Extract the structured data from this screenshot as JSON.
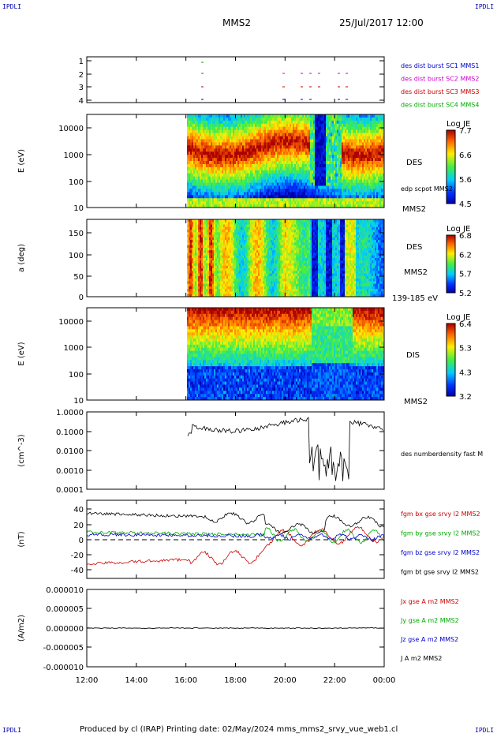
{
  "corners": {
    "left_top": "IPDLI",
    "right_top": "IPDLI",
    "left_bottom": "IPDLI",
    "right_bottom": "IPDLI"
  },
  "header": {
    "spacecraft": "MMS2",
    "date": "25/Jul/2017 12:00"
  },
  "footer": {
    "text": "Produced by cl (IRAP)   Printing date: 02/May/2024   mms_mms2_srvy_vue_web1.cl"
  },
  "colors": {
    "red": "#cc0000",
    "green": "#00aa00",
    "blue": "#0000cc",
    "magenta": "#cc00cc",
    "black": "#000000"
  },
  "chart_data": [
    {
      "type": "scatter",
      "id": "burst",
      "yticks": [
        "1",
        "2",
        "3",
        "4"
      ],
      "labels": [
        {
          "text": "des dist burst SC1 MMS1",
          "color": "#0000cc"
        },
        {
          "text": "des dist burst SC2 MMS2",
          "color": "#cc00cc"
        },
        {
          "text": "des dist burst SC3 MMS3",
          "color": "#cc0000"
        },
        {
          "text": "des dist burst SC4 MMS4",
          "color": "#00aa00"
        }
      ]
    },
    {
      "type": "heatmap",
      "id": "des_energy",
      "ylabel": "E (eV)",
      "yticks": [
        "10000",
        "1000",
        "100",
        "10"
      ],
      "right_labels": [
        "DES",
        "edp scpot MMS2",
        "MMS2"
      ],
      "colorbar": {
        "title": "Log JE",
        "ticks": [
          "7.7",
          "6.6",
          "5.6",
          "4.5"
        ]
      }
    },
    {
      "type": "heatmap",
      "id": "des_pitch",
      "ylabel": "a (deg)",
      "yticks": [
        "150",
        "100",
        "50",
        "0"
      ],
      "right_labels": [
        "DES",
        "MMS2",
        "139-185 eV"
      ],
      "colorbar": {
        "title": "Log JE",
        "ticks": [
          "6.8",
          "6.2",
          "5.7",
          "5.2"
        ]
      }
    },
    {
      "type": "heatmap",
      "id": "dis_energy",
      "ylabel": "E (eV)",
      "yticks": [
        "10000",
        "1000",
        "100",
        "10"
      ],
      "right_labels": [
        "DIS",
        "MMS2"
      ],
      "colorbar": {
        "title": "Log JE",
        "ticks": [
          "6.4",
          "5.3",
          "4.3",
          "3.2"
        ]
      }
    },
    {
      "type": "line",
      "id": "density",
      "ylabel": "(cm^-3)",
      "yticks": [
        "1.0000",
        "0.1000",
        "0.0100",
        "0.0010",
        "0.0001"
      ],
      "series": [
        {
          "name": "des numberdensity fast M",
          "color": "#000000"
        }
      ]
    },
    {
      "type": "line",
      "id": "fgm",
      "ylabel": "(nT)",
      "yticks": [
        "40",
        "20",
        "0",
        "-20",
        "-40"
      ],
      "series": [
        {
          "name": "fgm bx gse srvy l2 MMS2",
          "color": "#cc0000"
        },
        {
          "name": "fgm by gse srvy l2 MMS2",
          "color": "#00aa00"
        },
        {
          "name": "fgm bz gse srvy l2 MMS2",
          "color": "#0000cc"
        },
        {
          "name": "fgm bt gse srvy l2 MMS2",
          "color": "#000000"
        }
      ]
    },
    {
      "type": "line",
      "id": "current",
      "ylabel": "(A/m2)",
      "yticks": [
        "0.000010",
        "0.000005",
        "0.000000",
        "-0.000005",
        "-0.000010"
      ],
      "series": [
        {
          "name": "Jx gse A m2 MMS2",
          "color": "#cc0000"
        },
        {
          "name": "Jy gse A m2 MMS2",
          "color": "#00aa00"
        },
        {
          "name": "Jz gse A m2 MMS2",
          "color": "#0000cc"
        },
        {
          "name": "J A m2 MMS2",
          "color": "#000000"
        }
      ]
    }
  ],
  "xticks": [
    "12:00",
    "14:00",
    "16:00",
    "18:00",
    "20:00",
    "22:00",
    "00:00"
  ]
}
